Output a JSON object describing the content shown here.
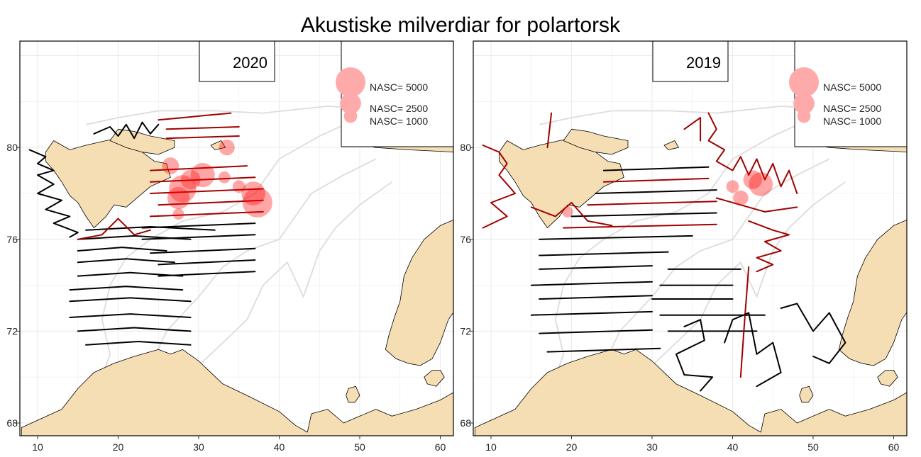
{
  "title": "Akustiske milverdiar for polartorsk",
  "axes": {
    "x_ticks": [
      "10",
      "20",
      "30",
      "40",
      "50",
      "60"
    ],
    "y_ticks": [
      "68",
      "72",
      "76",
      "80"
    ]
  },
  "colors": {
    "land": "#f5deb3",
    "track": "#000000",
    "track_positive": "#a00000",
    "bubble": "#ff0000",
    "bubble_legend": "#ffaaaa",
    "contour": "#dcdcdc",
    "grid": "#ebebeb"
  },
  "legend": {
    "items": [
      {
        "label": "NASC= 5000",
        "value": 5000
      },
      {
        "label": "NASC= 2500",
        "value": 2500
      },
      {
        "label": "NASC= 1000",
        "value": 1000
      }
    ]
  },
  "panels": [
    {
      "year": "2020",
      "bubbles": [
        {
          "lon": 37.3,
          "lat": 77.6,
          "nasc": 5000
        },
        {
          "lon": 36.8,
          "lat": 78.0,
          "nasc": 3200
        },
        {
          "lon": 28.0,
          "lat": 78.2,
          "nasc": 4200
        },
        {
          "lon": 27.5,
          "lat": 77.8,
          "nasc": 2800
        },
        {
          "lon": 30.5,
          "lat": 78.8,
          "nasc": 3300
        },
        {
          "lon": 29.0,
          "lat": 78.6,
          "nasc": 2200
        },
        {
          "lon": 26.5,
          "lat": 79.2,
          "nasc": 1600
        },
        {
          "lon": 33.5,
          "lat": 80.0,
          "nasc": 1400
        },
        {
          "lon": 33.2,
          "lat": 78.7,
          "nasc": 800
        },
        {
          "lon": 27.5,
          "lat": 77.1,
          "nasc": 700
        },
        {
          "lon": 35.0,
          "lat": 78.3,
          "nasc": 900
        }
      ]
    },
    {
      "year": "2019",
      "bubbles": [
        {
          "lon": 43.5,
          "lat": 78.4,
          "nasc": 3200
        },
        {
          "lon": 42.5,
          "lat": 78.6,
          "nasc": 2000
        },
        {
          "lon": 41.0,
          "lat": 77.8,
          "nasc": 1300
        },
        {
          "lon": 40.0,
          "lat": 78.3,
          "nasc": 900
        },
        {
          "lon": 19.5,
          "lat": 77.2,
          "nasc": 700
        }
      ]
    }
  ]
}
